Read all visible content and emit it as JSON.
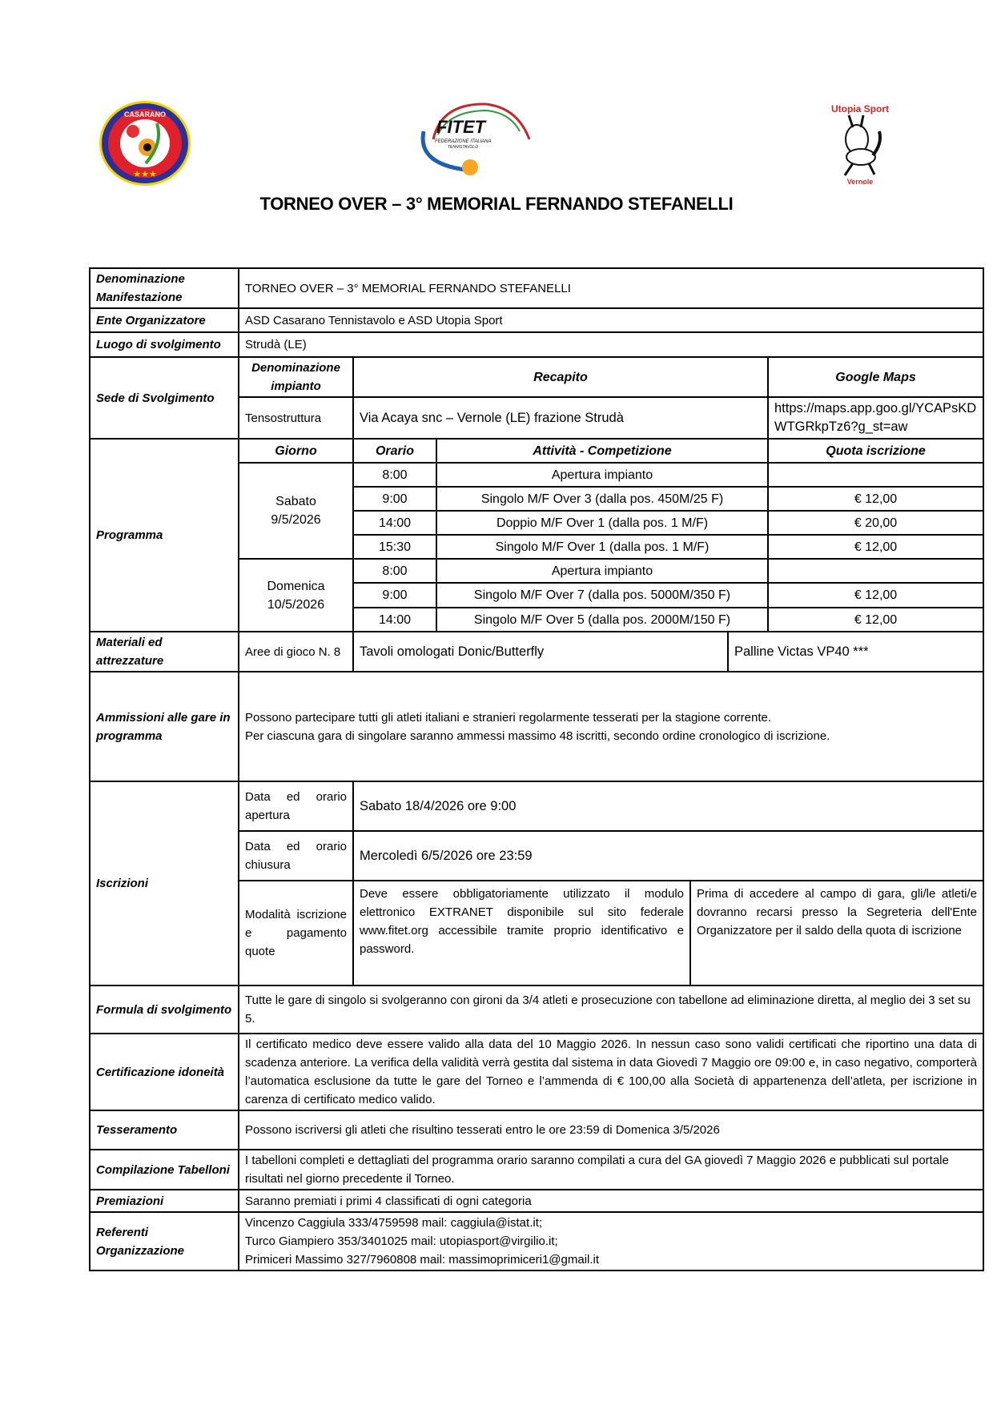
{
  "header": {
    "title": "TORNEO OVER – 3° MEMORIAL FERNANDO STEFANELLI",
    "logos": [
      {
        "name": "casarano-logo",
        "text": "CASARANO"
      },
      {
        "name": "fitet-logo",
        "text": "FITET",
        "subtext": "FEDERAZIONE ITALIANA TENNISTAVOLO"
      },
      {
        "name": "utopia-sport-logo",
        "text": "Utopia Sport",
        "subtext": "Vernole"
      }
    ]
  },
  "rows": {
    "denominazione": {
      "label": "Denominazione Manifestazione",
      "value": "TORNEO OVER – 3° MEMORIAL FERNANDO STEFANELLI"
    },
    "ente": {
      "label": "Ente Organizzatore",
      "value": "ASD Casarano Tennistavolo e ASD Utopia Sport"
    },
    "luogo": {
      "label": "Luogo di svolgimento",
      "value": "Strudà (LE)"
    },
    "sede": {
      "label": "Sede di Svolgimento",
      "headers": [
        "Denominazione impianto",
        "Recapito",
        "Google Maps"
      ],
      "impianto": "Tensostruttura",
      "recapito": "Via Acaya snc – Vernole (LE) frazione Strudà",
      "maps": "https://maps.app.goo.gl/YCAPsKDWTGRkpTz6?g_st=aw"
    },
    "programma": {
      "label": "Programma",
      "headers": [
        "Giorno",
        "Orario",
        "Attività - Competizione",
        "Quota iscrizione"
      ],
      "days": [
        {
          "day": "Sabato",
          "date": "9/5/2026",
          "events": [
            {
              "time": "8:00",
              "activity": "Apertura impianto",
              "fee": ""
            },
            {
              "time": "9:00",
              "activity": "Singolo M/F Over 3 (dalla pos. 450M/25 F)",
              "fee": "€ 12,00"
            },
            {
              "time": "14:00",
              "activity": "Doppio M/F Over 1 (dalla pos. 1 M/F)",
              "fee": "€ 20,00"
            },
            {
              "time": "15:30",
              "activity": "Singolo M/F Over 1 (dalla pos. 1 M/F)",
              "fee": "€ 12,00"
            }
          ]
        },
        {
          "day": "Domenica",
          "date": "10/5/2026",
          "events": [
            {
              "time": "8:00",
              "activity": "Apertura impianto",
              "fee": ""
            },
            {
              "time": "9:00",
              "activity": "Singolo M/F Over 7 (dalla pos. 5000M/350 F)",
              "fee": "€ 12,00"
            },
            {
              "time": "14:00",
              "activity": "Singolo M/F Over 5 (dalla pos. 2000M/150 F)",
              "fee": "€ 12,00"
            }
          ]
        }
      ]
    },
    "materiali": {
      "label": "Materiali ed attrezzature",
      "aree": "Aree di gioco  N. 8",
      "tavoli": "Tavoli omologati Donic/Butterfly",
      "palline": "Palline Victas VP40 ***"
    },
    "ammissioni": {
      "label": "Ammissioni alle gare in programma",
      "line1": "Possono partecipare tutti gli atleti italiani e stranieri regolarmente tesserati per la stagione corrente.",
      "line2": "Per ciascuna gara di singolare  saranno ammessi massimo 48 iscritti, secondo ordine cronologico di iscrizione."
    },
    "iscrizioni": {
      "label": "Iscrizioni",
      "apertura_label": "Data ed orario apertura",
      "apertura": "Sabato 18/4/2026 ore 9:00",
      "chiusura_label": "Data ed orario chiusura",
      "chiusura": "Mercoledì 6/5/2026 ore 23:59",
      "modalita_label": "Modalità iscrizione e pagamento quote",
      "modalita": "Deve essere obbligatoriamente utilizzato il modulo elettronico EXTRANET disponibile sul sito federale www.fitet.org accessibile tramite proprio identificativo e password.",
      "pagamento": "Prima di accedere al campo di gara, gli/le atleti/e dovranno recarsi presso la Segreteria dell'Ente Organizzatore per il saldo della quota di iscrizione"
    },
    "formula": {
      "label": "Formula di svolgimento",
      "value": "Tutte le gare di singolo si svolgeranno con gironi da 3/4 atleti e prosecuzione con tabellone ad eliminazione diretta, al meglio dei 3 set su 5."
    },
    "certificazione": {
      "label": "Certificazione idoneità",
      "value": "Il certificato medico deve essere valido alla  data del 10 Maggio 2026. In nessun caso sono validi certificati che riportino  una data di scadenza  anteriore. La verifica della validità verrà gestita dal sistema in data Giovedì 7 Maggio ore 09:00 e, in caso negativo, comporterà l’automatica esclusione da tutte le gare del Torneo e l’ammenda di € 100,00 alla  Società di appartenenza dell’atleta, per iscrizione  in carenza  di  certificato  medico valido."
    },
    "tesseramento": {
      "label": "Tesseramento",
      "value": "Possono iscriversi gli atleti che risultino  tesserati entro le ore 23:59 di Domenica 3/5/2026"
    },
    "compilazione": {
      "label": "Compilazione Tabelloni",
      "value": "I  tabelloni  completi e dettagliati del programma orario saranno compilati  a cura del GA giovedì 7 Maggio 2026 e pubblicati sul portale  risultati nel giorno precedente il Torneo."
    },
    "premiazioni": {
      "label": "Premiazioni",
      "value": "Saranno premiati i primi 4 classificati di ogni categoria"
    },
    "referenti": {
      "label": "Referenti Organizzazione",
      "contacts": [
        "Vincenzo Caggiula  333/4759598 mail: caggiula@istat.it;",
        "Turco Giampiero  353/3401025 mail: utopiasport@virgilio.it;",
        "Primiceri Massimo  327/7960808 mail: massimoprimiceri1@gmail.it"
      ]
    }
  }
}
